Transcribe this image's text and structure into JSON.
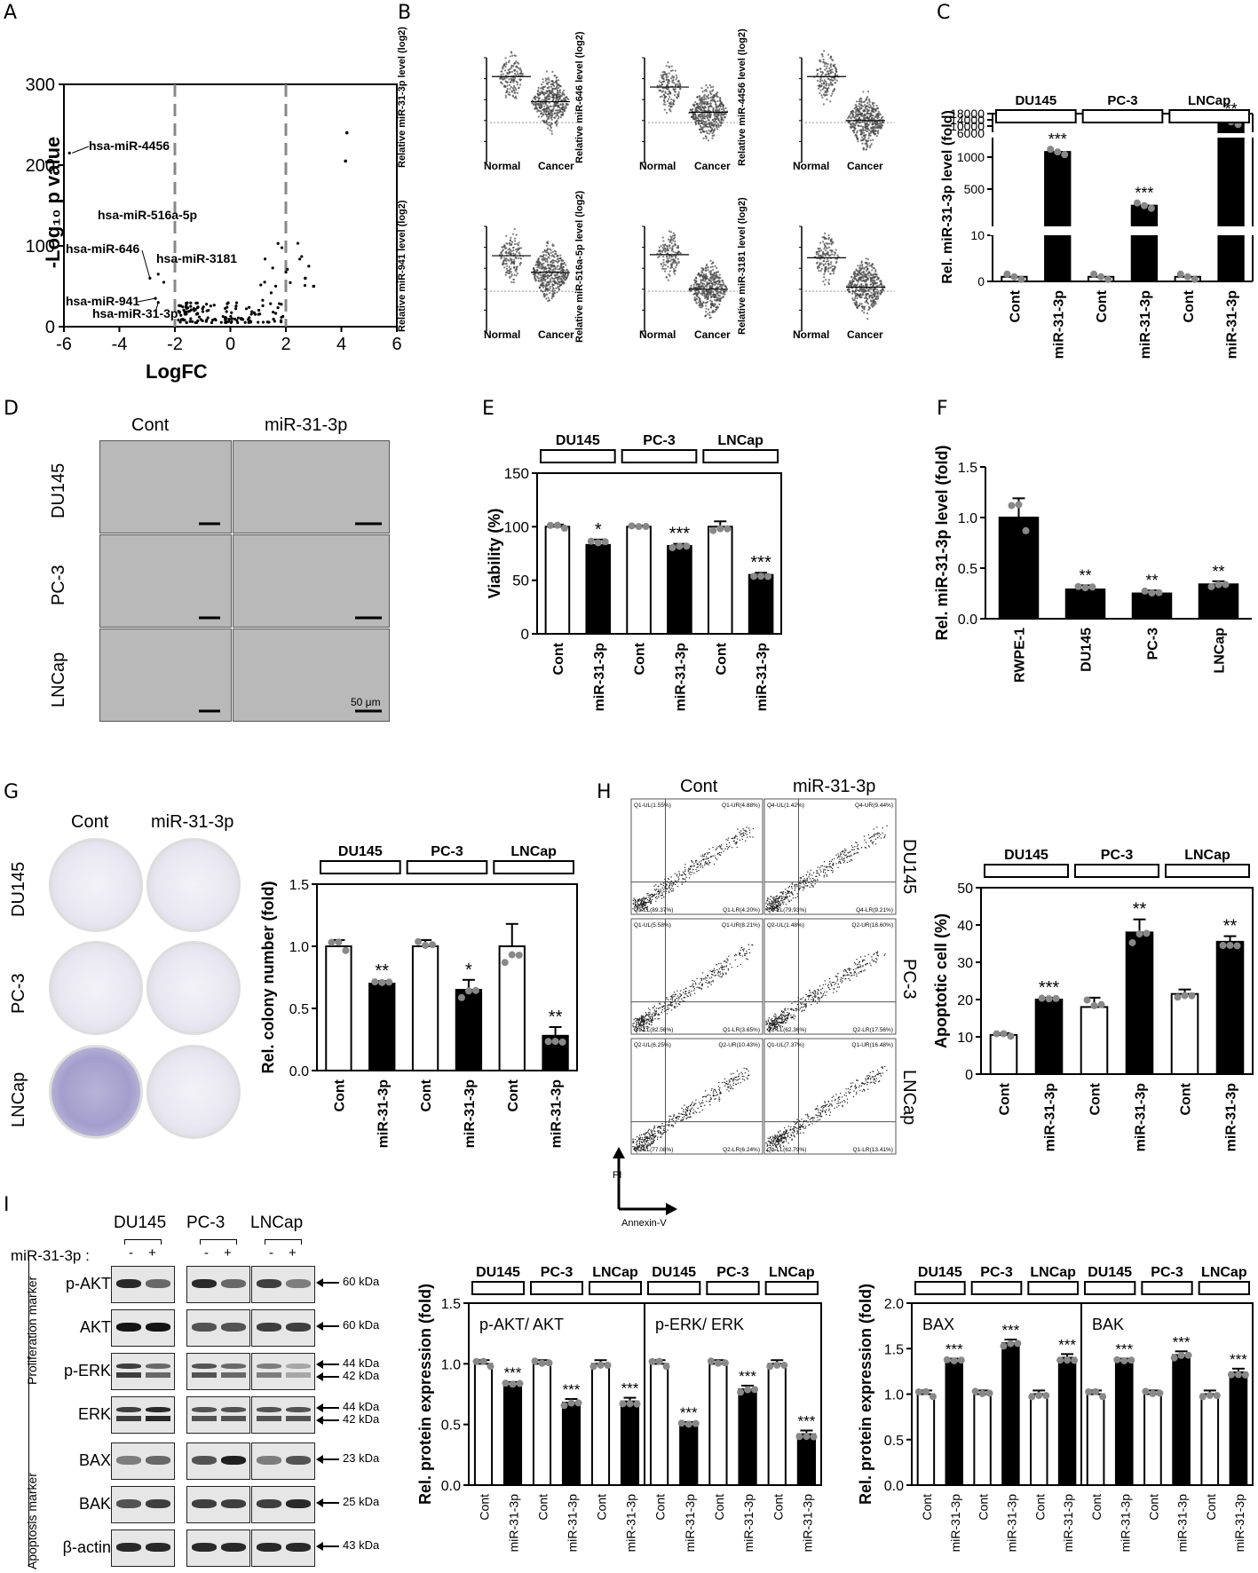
{
  "panels": [
    "A",
    "B",
    "C",
    "D",
    "E",
    "F",
    "G",
    "H",
    "I"
  ],
  "groups": [
    "DU145",
    "PC-3",
    "LNCap"
  ],
  "conditions": [
    "Cont",
    "miR-31-3p"
  ],
  "labels": {
    "normal": "Normal",
    "cancer": "Cancer",
    "scale_bar": "50 μm",
    "mir_pm": "miR-31-3p :",
    "minus": "-",
    "plus": "+",
    "pi": "PI",
    "annexin": "Annexin-V",
    "prolif_marker": "Proliferation marker",
    "apop_marker": "Apoptosis marker"
  },
  "panel_a": {
    "ylabel": "-Log₁₀ p value",
    "xlabel": "LogFC",
    "annotations": [
      "hsa-miR-4456",
      "hsa-miR-516a-5p",
      "hsa-miR-646",
      "hsa-miR-3181",
      "hsa-miR-941",
      "hsa-miR-31-3p"
    ]
  },
  "panel_b": {
    "ylabels": [
      "Relative miR-31-3p level (log2)",
      "Relative miR-646 level (log2)",
      "Relative miR-4456 level (log2)",
      "Relative miR-941 level (log2)",
      "Relative miR-516a-5p level (log2)",
      "Relative miR-3181 level (log2)"
    ]
  },
  "flow": {
    "gates": [
      [
        "Q1-UL(1.55%)",
        "Q1-UR(4.88%)",
        "Q1-LL(89.37%)",
        "Q1-LR(4.20%)"
      ],
      [
        "Q4-UL(1.42%)",
        "Q4-UR(9.44%)",
        "Q4-LL(79.93%)",
        "Q4-LR(9.21%)"
      ],
      [
        "Q1-UL(5.58%)",
        "Q1-UR(8.21%)",
        "Q1-LL(82.56%)",
        "Q1-LR(3.65%)"
      ],
      [
        "Q2-UL(1.48%)",
        "Q2-UR(18.60%)",
        "Q2-LL(62.36%)",
        "Q2-LR(17.56%)"
      ],
      [
        "Q2-UL(6.25%)",
        "Q2-UR(10.43%)",
        "Q2-LL(77.08%)",
        "Q2-LR(6.24%)"
      ],
      [
        "Q1-UL(7.37%)",
        "Q1-UR(16.48%)",
        "Q1-LL(62.79%)",
        "Q1-LR(13.41%)"
      ]
    ]
  },
  "blots": {
    "proteins": [
      "p-AKT",
      "AKT",
      "p-ERK",
      "ERK",
      "BAX",
      "BAK",
      "β-actin"
    ],
    "sizes": [
      [
        "60 kDa"
      ],
      [
        "60 kDa"
      ],
      [
        "44 kDa",
        "42 kDa"
      ],
      [
        "44 kDa",
        "42 kDa"
      ],
      [
        "23 kDa"
      ],
      [
        "25 kDa"
      ],
      [
        "43 kDa"
      ]
    ]
  },
  "chart_data": [
    {
      "id": "A",
      "type": "scatter",
      "xlabel": "LogFC",
      "ylabel": "-Log10 p value",
      "xlim": [
        -6,
        6
      ],
      "ylim": [
        0,
        300
      ],
      "xticks": [
        -6,
        -4,
        -2,
        0,
        2,
        4,
        6
      ],
      "yticks": [
        0,
        100,
        200,
        300
      ],
      "threshold_lines": [
        -2,
        2
      ],
      "labeled_points": [
        {
          "name": "hsa-miR-4456",
          "x": -5.8,
          "y": 215
        },
        {
          "name": "hsa-miR-516a-5p",
          "x": -2.6,
          "y": 65
        },
        {
          "name": "hsa-miR-646",
          "x": -2.9,
          "y": 60
        },
        {
          "name": "hsa-miR-3181",
          "x": -2.4,
          "y": 55
        },
        {
          "name": "hsa-miR-941",
          "x": -2.7,
          "y": 35
        },
        {
          "name": "hsa-miR-31-3p",
          "x": -2.6,
          "y": 30
        }
      ]
    },
    {
      "id": "C",
      "type": "bar",
      "ylabel": "Rel. miR-31-3p level (fold)",
      "categories": [
        "Cont",
        "miR-31-3p",
        "Cont",
        "miR-31-3p",
        "Cont",
        "miR-31-3p"
      ],
      "values": [
        1,
        1050,
        1,
        300,
        1,
        11000
      ],
      "yticks": [
        "0",
        "10",
        "500",
        "1000",
        "6000",
        "10000",
        "14000",
        "18000"
      ],
      "significance": [
        "",
        "***",
        "",
        "***",
        "",
        "**"
      ]
    },
    {
      "id": "E",
      "type": "bar",
      "ylabel": "Viability (%)",
      "categories": [
        "Cont",
        "miR-31-3p",
        "Cont",
        "miR-31-3p",
        "Cont",
        "miR-31-3p"
      ],
      "values": [
        100,
        83,
        100,
        82,
        100,
        55
      ],
      "errors": [
        2,
        5,
        1,
        2,
        5,
        2
      ],
      "ylim": [
        0,
        150
      ],
      "yticks": [
        0,
        50,
        100,
        150
      ],
      "significance": [
        "",
        "*",
        "",
        "***",
        "",
        "***"
      ]
    },
    {
      "id": "F",
      "type": "bar",
      "ylabel": "Rel. miR-31-3p level (fold)",
      "categories": [
        "RWPE-1",
        "DU145",
        "PC-3",
        "LNCap"
      ],
      "values": [
        1.0,
        0.29,
        0.25,
        0.34
      ],
      "errors": [
        0.19,
        0.04,
        0.03,
        0.03
      ],
      "ylim": [
        0,
        1.5
      ],
      "yticks": [
        0.0,
        0.5,
        1.0,
        1.5
      ],
      "significance": [
        "",
        "**",
        "**",
        "**"
      ]
    },
    {
      "id": "G",
      "type": "bar",
      "ylabel": "Rel. colony number (fold)",
      "categories": [
        "Cont",
        "miR-31-3p",
        "Cont",
        "miR-31-3p",
        "Cont",
        "miR-31-3p"
      ],
      "values": [
        1.0,
        0.7,
        1.0,
        0.65,
        1.0,
        0.28
      ],
      "errors": [
        0.05,
        0.02,
        0.05,
        0.08,
        0.18,
        0.07
      ],
      "ylim": [
        0,
        1.5
      ],
      "yticks": [
        0.0,
        0.5,
        1.0,
        1.5
      ],
      "significance": [
        "",
        "**",
        "",
        "*",
        "",
        "**"
      ]
    },
    {
      "id": "H",
      "type": "bar",
      "ylabel": "Apoptotic cell (%)",
      "categories": [
        "Cont",
        "miR-31-3p",
        "Cont",
        "miR-31-3p",
        "Cont",
        "miR-31-3p"
      ],
      "values": [
        10.5,
        20,
        18,
        38,
        21.5,
        35.5
      ],
      "errors": [
        0.5,
        0.5,
        2.5,
        3.5,
        1.2,
        1.5
      ],
      "ylim": [
        0,
        50
      ],
      "yticks": [
        0,
        10,
        20,
        30,
        40,
        50
      ],
      "significance": [
        "",
        "***",
        "",
        "**",
        "",
        "**"
      ]
    },
    {
      "id": "I1",
      "type": "bar",
      "ylabel": "Rel. protein expression (fold)",
      "subtitle": "p-AKT/ AKT",
      "categories": [
        "Cont",
        "miR-31-3p",
        "Cont",
        "miR-31-3p",
        "Cont",
        "miR-31-3p"
      ],
      "values": [
        1.0,
        0.82,
        1.0,
        0.68,
        1.0,
        0.69
      ],
      "ylim": [
        0,
        1.5
      ],
      "yticks": [
        0.0,
        0.5,
        1.0,
        1.5
      ],
      "significance": [
        "",
        "***",
        "",
        "***",
        "",
        "***"
      ]
    },
    {
      "id": "I2",
      "type": "bar",
      "subtitle": "p-ERK/ ERK",
      "categories": [
        "Cont",
        "miR-31-3p",
        "Cont",
        "miR-31-3p",
        "Cont",
        "miR-31-3p"
      ],
      "values": [
        1.0,
        0.49,
        1.0,
        0.79,
        1.0,
        0.42
      ],
      "ylim": [
        0,
        1.5
      ],
      "significance": [
        "",
        "***",
        "",
        "***",
        "",
        "***"
      ]
    },
    {
      "id": "I3",
      "type": "bar",
      "ylabel": "Rel. protein expression (fold)",
      "subtitle": "BAX",
      "categories": [
        "Cont",
        "miR-31-3p",
        "Cont",
        "miR-31-3p",
        "Cont",
        "miR-31-3p"
      ],
      "values": [
        1.0,
        1.35,
        1.0,
        1.56,
        1.0,
        1.4
      ],
      "ylim": [
        0,
        2.0
      ],
      "yticks": [
        0.0,
        0.5,
        1.0,
        1.5,
        2.0
      ],
      "significance": [
        "",
        "***",
        "",
        "***",
        "",
        "***"
      ]
    },
    {
      "id": "I4",
      "type": "bar",
      "subtitle": "BAK",
      "categories": [
        "Cont",
        "miR-31-3p",
        "Cont",
        "miR-31-3p",
        "Cont",
        "miR-31-3p"
      ],
      "values": [
        1.0,
        1.35,
        1.0,
        1.43,
        1.0,
        1.24
      ],
      "ylim": [
        0,
        2.0
      ],
      "significance": [
        "",
        "***",
        "",
        "***",
        "",
        "***"
      ]
    }
  ]
}
